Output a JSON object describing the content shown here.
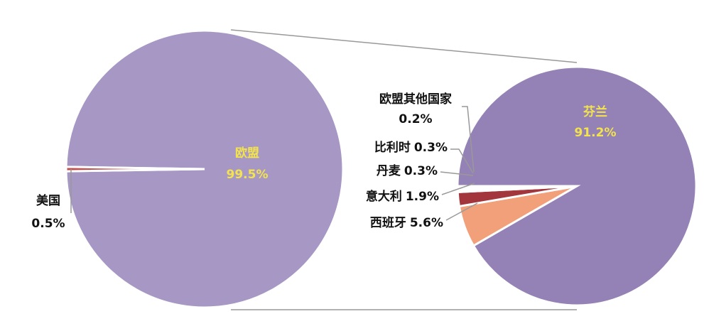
{
  "chart_data": [
    {
      "type": "pie",
      "categories": [
        "欧盟",
        "美国"
      ],
      "values": [
        99.5,
        0.5
      ],
      "value_labels": [
        "99.5%",
        "0.5%"
      ],
      "colors": [
        "#a797c4",
        "#c0504d"
      ]
    },
    {
      "type": "pie",
      "categories": [
        "西班牙",
        "意大利",
        "丹麦",
        "比利时",
        "欧盟其他国家",
        "芬兰"
      ],
      "values": [
        5.6,
        1.9,
        0.3,
        0.3,
        0.2,
        91.2
      ],
      "value_labels": [
        "5.6%",
        "1.9%",
        "0.3%",
        "0.3%",
        "0.2%",
        "91.2%"
      ],
      "colors": [
        "#f2a07a",
        "#a2363c",
        "#d98a84",
        "#b0596a",
        "#c7b8d8",
        "#9481b5"
      ]
    }
  ]
}
